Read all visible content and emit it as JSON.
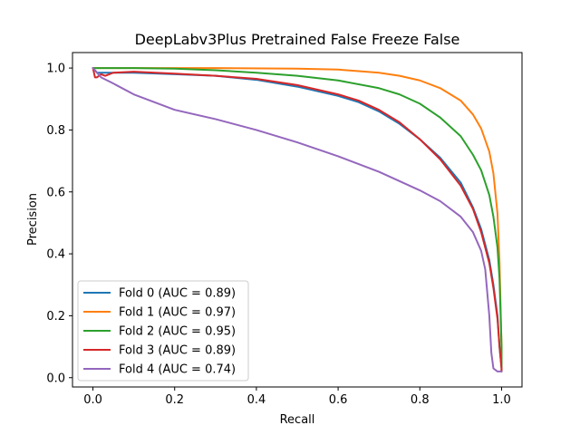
{
  "chart_data": {
    "type": "line",
    "title": "DeepLabv3Plus Pretrained False Freeze False",
    "xlabel": "Recall",
    "ylabel": "Precision",
    "xlim": [
      -0.05,
      1.05
    ],
    "ylim": [
      -0.03,
      1.05
    ],
    "xticks": [
      "0.0",
      "0.2",
      "0.4",
      "0.6",
      "0.8",
      "1.0"
    ],
    "yticks": [
      "0.0",
      "0.2",
      "0.4",
      "0.6",
      "0.8",
      "1.0"
    ],
    "grid": false,
    "legend_position": "lower-left",
    "series": [
      {
        "name": "Fold 0 (AUC = 0.89)",
        "color": "#1f77b4",
        "x": [
          0.0,
          0.01,
          0.02,
          0.05,
          0.1,
          0.2,
          0.3,
          0.4,
          0.5,
          0.6,
          0.65,
          0.7,
          0.75,
          0.8,
          0.85,
          0.9,
          0.93,
          0.95,
          0.97,
          0.98,
          0.99,
          0.995,
          1.0,
          1.0
        ],
        "y": [
          1.0,
          0.985,
          0.985,
          0.985,
          0.985,
          0.98,
          0.975,
          0.962,
          0.94,
          0.91,
          0.89,
          0.86,
          0.82,
          0.77,
          0.71,
          0.63,
          0.55,
          0.48,
          0.38,
          0.3,
          0.2,
          0.1,
          0.03,
          0.02
        ]
      },
      {
        "name": "Fold 1 (AUC = 0.97)",
        "color": "#ff7f0e",
        "x": [
          0.0,
          0.1,
          0.3,
          0.5,
          0.6,
          0.7,
          0.75,
          0.8,
          0.85,
          0.9,
          0.93,
          0.95,
          0.97,
          0.98,
          0.99,
          0.995,
          1.0,
          1.0
        ],
        "y": [
          1.0,
          1.0,
          1.0,
          0.998,
          0.995,
          0.985,
          0.975,
          0.96,
          0.935,
          0.895,
          0.85,
          0.805,
          0.73,
          0.66,
          0.53,
          0.37,
          0.1,
          0.02
        ]
      },
      {
        "name": "Fold 2 (AUC = 0.95)",
        "color": "#2ca02c",
        "x": [
          0.0,
          0.1,
          0.2,
          0.3,
          0.4,
          0.5,
          0.6,
          0.7,
          0.75,
          0.8,
          0.85,
          0.9,
          0.93,
          0.95,
          0.97,
          0.98,
          0.99,
          0.995,
          1.0,
          1.0
        ],
        "y": [
          1.0,
          1.0,
          0.998,
          0.993,
          0.985,
          0.975,
          0.96,
          0.935,
          0.915,
          0.885,
          0.84,
          0.78,
          0.72,
          0.67,
          0.59,
          0.52,
          0.42,
          0.32,
          0.1,
          0.02
        ]
      },
      {
        "name": "Fold 3 (AUC = 0.89)",
        "color": "#d62728",
        "x": [
          0.0,
          0.005,
          0.01,
          0.02,
          0.03,
          0.05,
          0.1,
          0.2,
          0.3,
          0.4,
          0.5,
          0.6,
          0.65,
          0.7,
          0.75,
          0.8,
          0.85,
          0.9,
          0.93,
          0.95,
          0.97,
          0.98,
          0.99,
          0.995,
          1.0,
          1.0
        ],
        "y": [
          1.0,
          0.97,
          0.97,
          0.98,
          0.975,
          0.985,
          0.988,
          0.982,
          0.975,
          0.965,
          0.945,
          0.915,
          0.895,
          0.865,
          0.825,
          0.77,
          0.705,
          0.62,
          0.545,
          0.47,
          0.37,
          0.29,
          0.19,
          0.1,
          0.03,
          0.02
        ]
      },
      {
        "name": "Fold 4 (AUC = 0.74)",
        "color": "#9467bd",
        "x": [
          0.0,
          0.01,
          0.02,
          0.05,
          0.1,
          0.15,
          0.2,
          0.3,
          0.4,
          0.5,
          0.6,
          0.7,
          0.75,
          0.8,
          0.85,
          0.9,
          0.93,
          0.95,
          0.96,
          0.97,
          0.975,
          0.98,
          0.99,
          1.0
        ],
        "y": [
          1.0,
          0.985,
          0.97,
          0.95,
          0.915,
          0.89,
          0.865,
          0.835,
          0.8,
          0.76,
          0.715,
          0.665,
          0.635,
          0.605,
          0.57,
          0.52,
          0.47,
          0.41,
          0.35,
          0.2,
          0.08,
          0.03,
          0.02,
          0.02
        ]
      }
    ]
  }
}
